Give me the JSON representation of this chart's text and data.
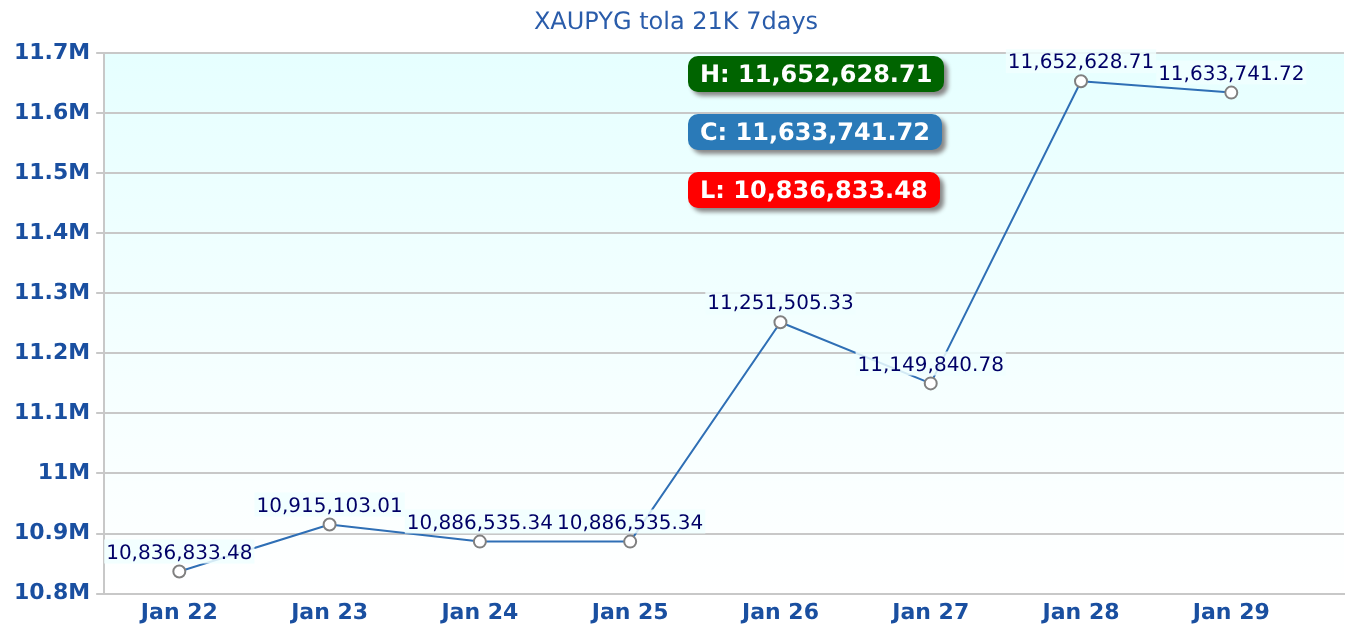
{
  "chart_data": {
    "type": "line",
    "title": "XAUPYG tola 21K 7days",
    "categories": [
      "Jan 22",
      "Jan 23",
      "Jan 24",
      "Jan 25",
      "Jan 26",
      "Jan 27",
      "Jan 28",
      "Jan 29"
    ],
    "series": [
      {
        "color": "#2f6fb5",
        "values": [
          10836833.48,
          10915103.01,
          10886535.34,
          10886535.34,
          11251505.33,
          11149840.78,
          11652628.71,
          11633741.72
        ],
        "value_labels": [
          "10,836,833.48",
          "10,915,103.01",
          "10,886,535.34",
          "10,886,535.34",
          "11,251,505.33",
          "11,149,840.78",
          "11,652,628.71",
          "11,633,741.72"
        ]
      }
    ],
    "ylim": [
      10800000,
      11700000
    ],
    "yticks": [
      {
        "value": 10800000,
        "label": "10.8M"
      },
      {
        "value": 10900000,
        "label": "10.9M"
      },
      {
        "value": 11000000,
        "label": "11M"
      },
      {
        "value": 11100000,
        "label": "11.1M"
      },
      {
        "value": 11200000,
        "label": "11.2M"
      },
      {
        "value": 11300000,
        "label": "11.3M"
      },
      {
        "value": 11400000,
        "label": "11.4M"
      },
      {
        "value": 11500000,
        "label": "11.5M"
      },
      {
        "value": 11600000,
        "label": "11.6M"
      },
      {
        "value": 11700000,
        "label": "11.7M"
      }
    ],
    "annotations": [
      "H: 11,652,628.71",
      "C: 11,633,741.72",
      "L: 10,836,833.48"
    ],
    "grid": "y",
    "marker": "circle",
    "line_style": "solid",
    "legend": false
  }
}
